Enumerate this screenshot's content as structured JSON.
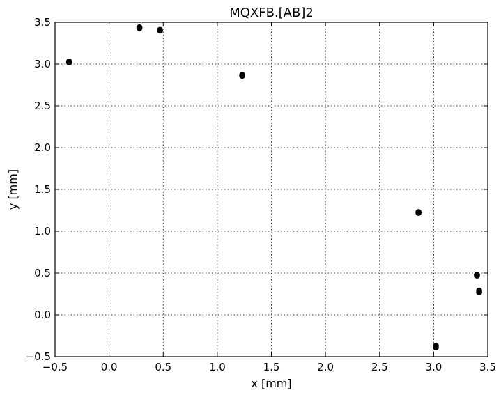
{
  "chart_data": {
    "type": "scatter",
    "title": "MQXFB.[AB]2",
    "xlabel": "x [mm]",
    "ylabel": "y [mm]",
    "xlim": [
      -0.5,
      3.5
    ],
    "ylim": [
      -0.5,
      3.5
    ],
    "xticks": [
      -0.5,
      0.0,
      0.5,
      1.0,
      1.5,
      2.0,
      2.5,
      3.0,
      3.5
    ],
    "yticks": [
      -0.5,
      0.0,
      0.5,
      1.0,
      1.5,
      2.0,
      2.5,
      3.0,
      3.5
    ],
    "xtick_labels": [
      "−0.5",
      "0.0",
      "0.5",
      "1.0",
      "1.5",
      "2.0",
      "2.5",
      "3.0",
      "3.5"
    ],
    "ytick_labels": [
      "−0.5",
      "0.0",
      "0.5",
      "1.0",
      "1.5",
      "2.0",
      "2.5",
      "3.0",
      "3.5"
    ],
    "grid": true,
    "marker_color": "#000000",
    "points": [
      {
        "x": -0.37,
        "y": 3.03
      },
      {
        "x": -0.37,
        "y": 3.02
      },
      {
        "x": 0.28,
        "y": 3.44
      },
      {
        "x": 0.28,
        "y": 3.43
      },
      {
        "x": 0.47,
        "y": 3.41
      },
      {
        "x": 0.47,
        "y": 3.4
      },
      {
        "x": 1.23,
        "y": 2.87
      },
      {
        "x": 1.23,
        "y": 2.86
      },
      {
        "x": 2.86,
        "y": 1.23
      },
      {
        "x": 2.86,
        "y": 1.22
      },
      {
        "x": 3.4,
        "y": 0.48
      },
      {
        "x": 3.4,
        "y": 0.47
      },
      {
        "x": 3.42,
        "y": 0.29
      },
      {
        "x": 3.42,
        "y": 0.27
      },
      {
        "x": 3.02,
        "y": -0.37
      },
      {
        "x": 3.02,
        "y": -0.39
      }
    ]
  }
}
